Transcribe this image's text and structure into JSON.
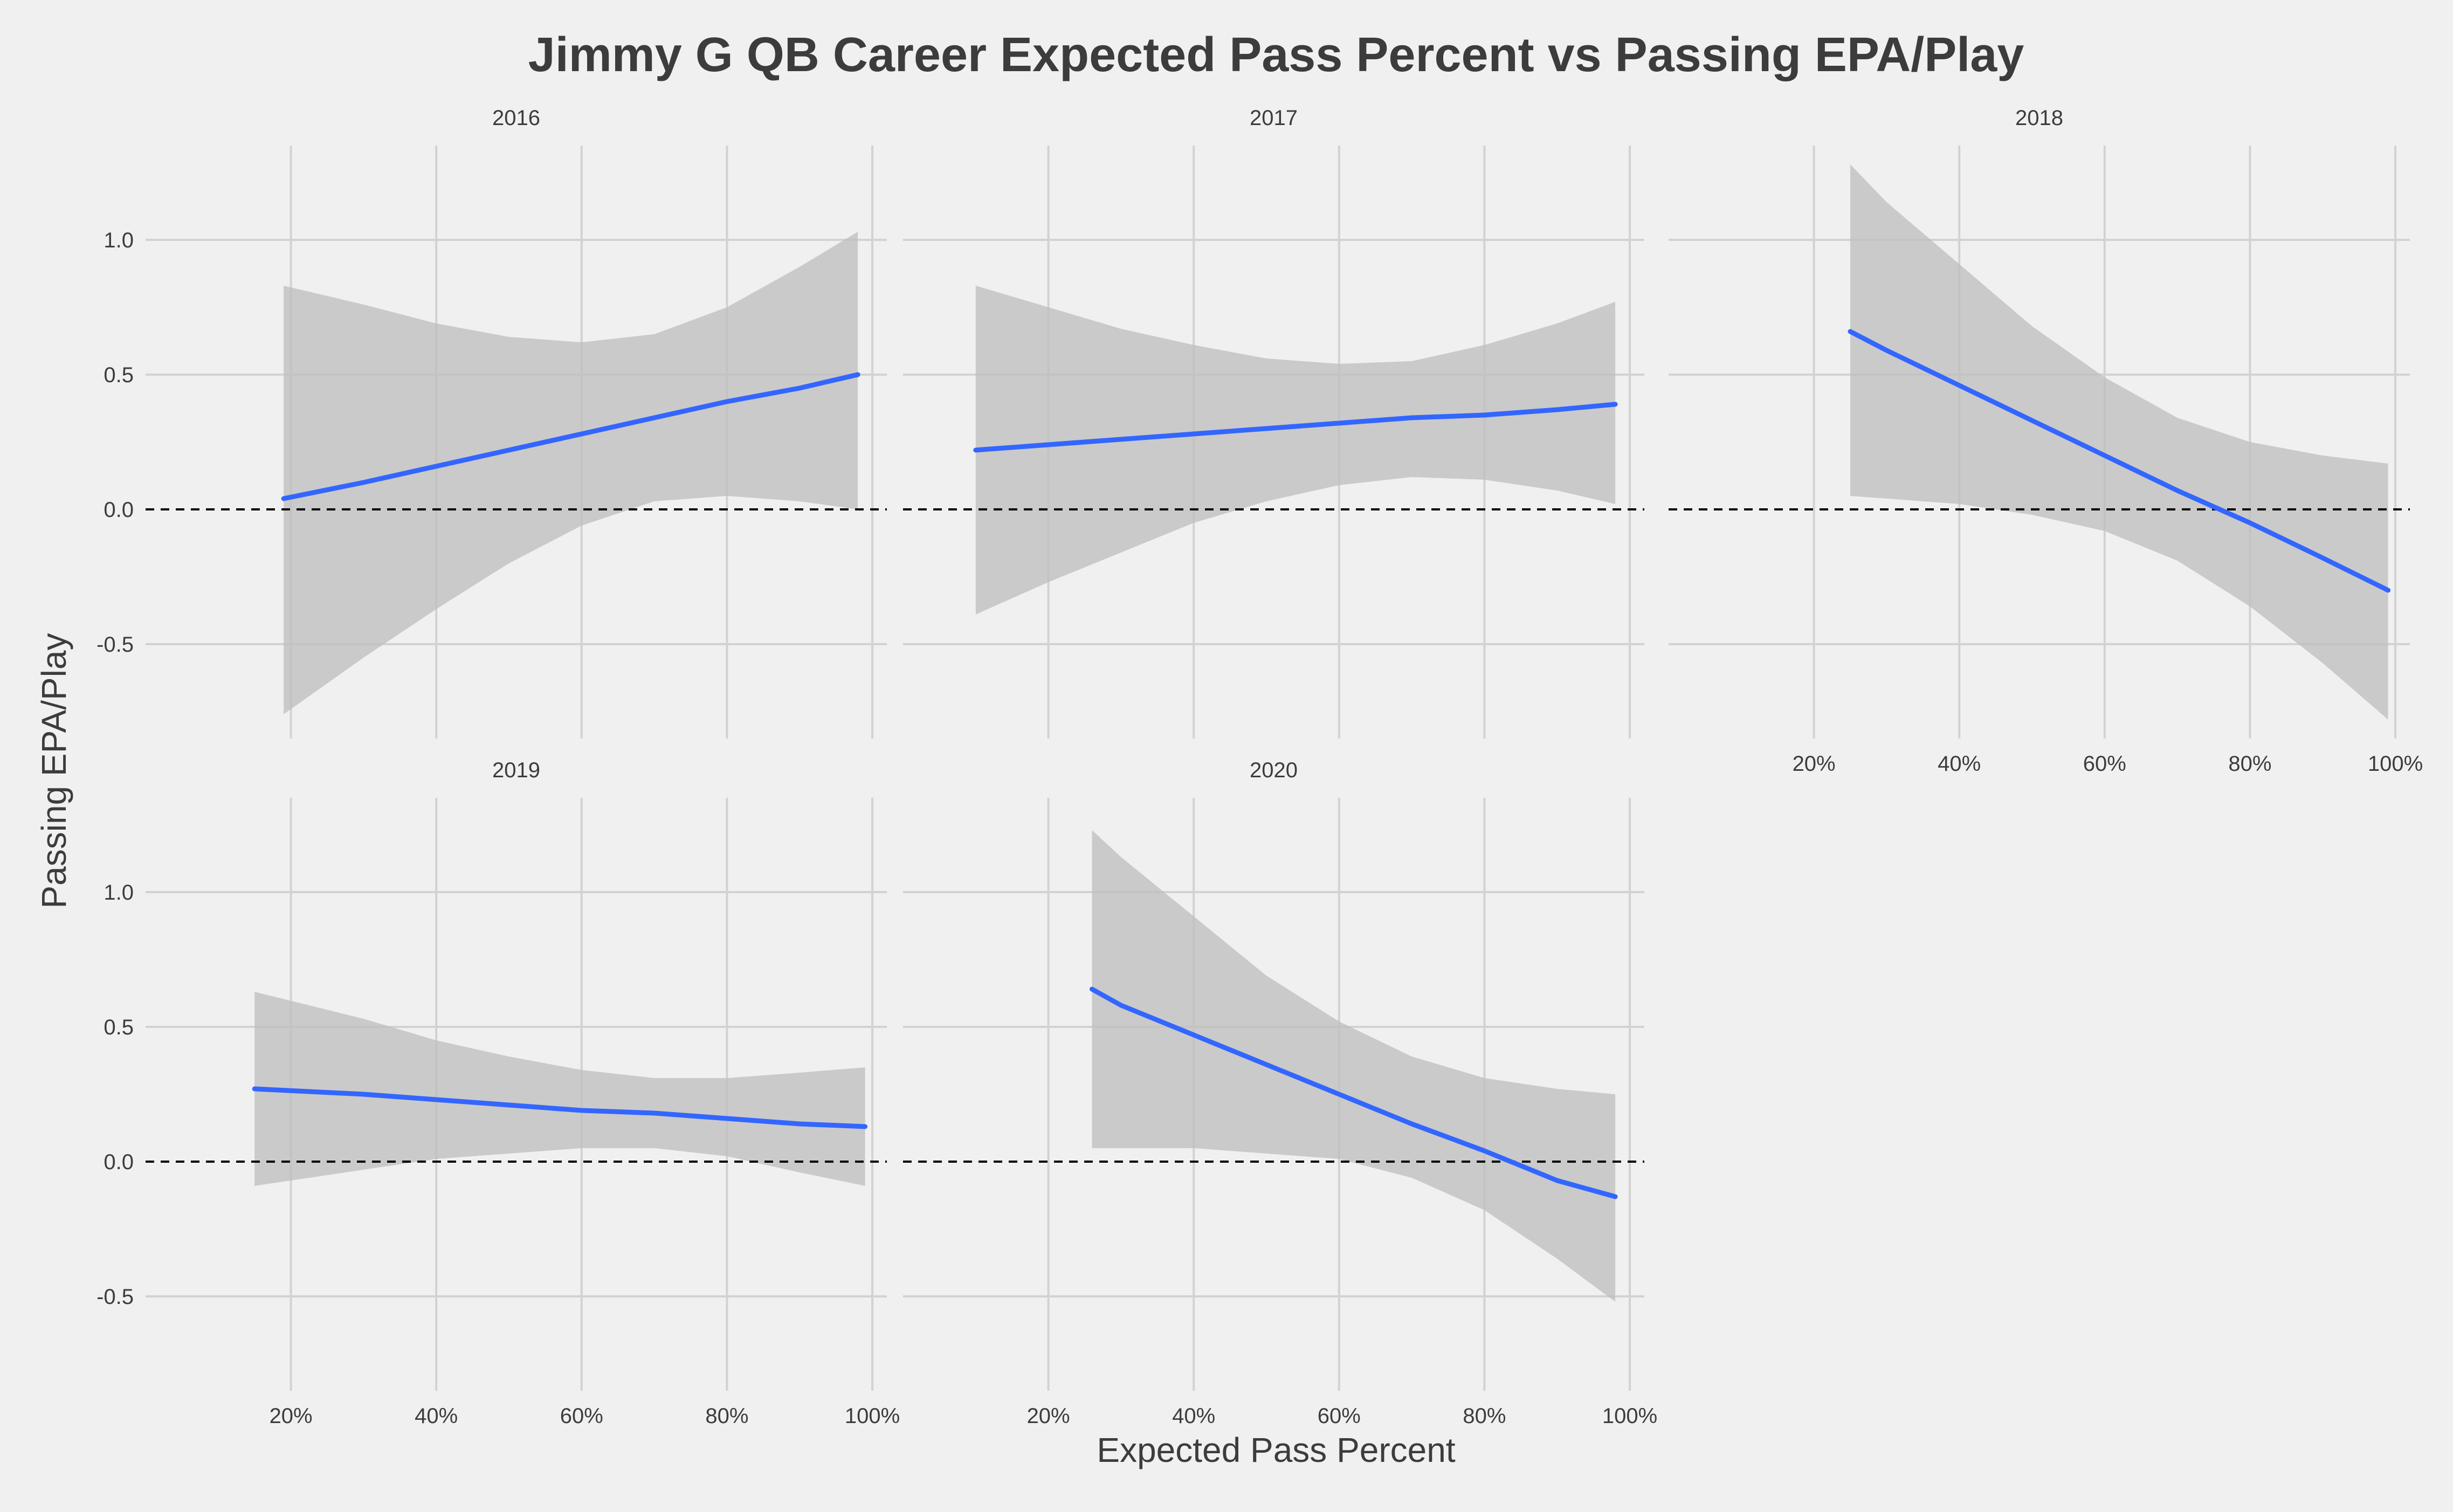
{
  "chart_data": {
    "type": "line",
    "title": "Jimmy G QB Career Expected Pass Percent vs Passing EPA/Play",
    "xlabel": "Expected Pass Percent",
    "ylabel": "Passing EPA/Play",
    "xlim": [
      0.0,
      1.02
    ],
    "ylim": [
      -0.85,
      1.35
    ],
    "x_ticks": [
      0.2,
      0.4,
      0.6,
      0.8,
      1.0
    ],
    "x_tick_labels": [
      "20%",
      "40%",
      "60%",
      "80%",
      "100%"
    ],
    "y_ticks": [
      -0.5,
      0.0,
      0.5,
      1.0
    ],
    "y_tick_labels": [
      "-0.5",
      "0.0",
      "0.5",
      "1.0"
    ],
    "reference_line": {
      "y": 0.0,
      "style": "dashed"
    },
    "colors": {
      "background": "#f0f0f0",
      "grid": "#d2d2d2",
      "line": "#3366ff",
      "ribbon": "#bdbdbd",
      "text": "#3c3c3c"
    },
    "panels": [
      {
        "label": "2016",
        "x": [
          0.19,
          0.3,
          0.4,
          0.5,
          0.6,
          0.7,
          0.8,
          0.9,
          0.98
        ],
        "fit": [
          0.04,
          0.1,
          0.16,
          0.22,
          0.28,
          0.34,
          0.4,
          0.45,
          0.5
        ],
        "lower": [
          -0.76,
          -0.55,
          -0.37,
          -0.2,
          -0.06,
          0.03,
          0.05,
          0.03,
          0.0
        ],
        "upper": [
          0.83,
          0.76,
          0.69,
          0.64,
          0.62,
          0.65,
          0.75,
          0.9,
          1.03
        ]
      },
      {
        "label": "2017",
        "x": [
          0.1,
          0.2,
          0.3,
          0.4,
          0.5,
          0.6,
          0.7,
          0.8,
          0.9,
          0.98
        ],
        "fit": [
          0.22,
          0.24,
          0.26,
          0.28,
          0.3,
          0.32,
          0.34,
          0.35,
          0.37,
          0.39
        ],
        "lower": [
          -0.39,
          -0.27,
          -0.16,
          -0.05,
          0.03,
          0.09,
          0.12,
          0.11,
          0.07,
          0.02
        ],
        "upper": [
          0.83,
          0.75,
          0.67,
          0.61,
          0.56,
          0.54,
          0.55,
          0.61,
          0.69,
          0.77
        ]
      },
      {
        "label": "2018",
        "x": [
          0.25,
          0.3,
          0.4,
          0.5,
          0.6,
          0.7,
          0.8,
          0.9,
          0.99
        ],
        "fit": [
          0.66,
          0.59,
          0.46,
          0.33,
          0.2,
          0.07,
          -0.05,
          -0.18,
          -0.3
        ],
        "lower": [
          0.05,
          0.04,
          0.02,
          -0.02,
          -0.08,
          -0.19,
          -0.36,
          -0.57,
          -0.78
        ],
        "upper": [
          1.28,
          1.14,
          0.91,
          0.68,
          0.49,
          0.34,
          0.25,
          0.2,
          0.17
        ]
      },
      {
        "label": "2019",
        "x": [
          0.15,
          0.3,
          0.4,
          0.5,
          0.6,
          0.7,
          0.8,
          0.9,
          0.99
        ],
        "fit": [
          0.27,
          0.25,
          0.23,
          0.21,
          0.19,
          0.18,
          0.16,
          0.14,
          0.13
        ],
        "lower": [
          -0.09,
          -0.03,
          0.01,
          0.03,
          0.05,
          0.05,
          0.02,
          -0.04,
          -0.09
        ],
        "upper": [
          0.63,
          0.53,
          0.45,
          0.39,
          0.34,
          0.31,
          0.31,
          0.33,
          0.35
        ]
      },
      {
        "label": "2020",
        "x": [
          0.26,
          0.3,
          0.4,
          0.5,
          0.6,
          0.7,
          0.8,
          0.9,
          0.98
        ],
        "fit": [
          0.64,
          0.58,
          0.47,
          0.36,
          0.25,
          0.14,
          0.04,
          -0.07,
          -0.13
        ],
        "lower": [
          0.05,
          0.05,
          0.05,
          0.03,
          0.01,
          -0.06,
          -0.18,
          -0.36,
          -0.52
        ],
        "upper": [
          1.23,
          1.13,
          0.91,
          0.69,
          0.52,
          0.39,
          0.31,
          0.27,
          0.25
        ]
      }
    ]
  }
}
